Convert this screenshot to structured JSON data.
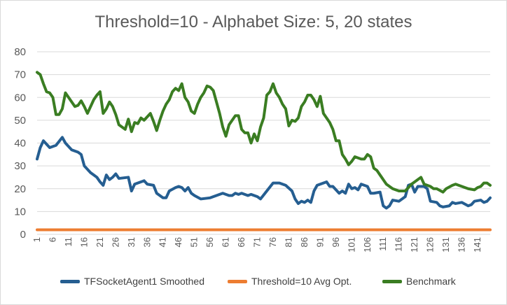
{
  "chart_data": {
    "type": "line",
    "title": "Threshold=10 - Alphabet Size: 5, 20 states",
    "xlabel": "",
    "ylabel": "",
    "ylim": [
      0,
      80
    ],
    "yticks": [
      0,
      10,
      20,
      30,
      40,
      50,
      60,
      70,
      80
    ],
    "xtick_labels": [
      "1",
      "6",
      "11",
      "16",
      "21",
      "26",
      "31",
      "36",
      "41",
      "46",
      "51",
      "56",
      "61",
      "66",
      "71",
      "76",
      "81",
      "86",
      "91",
      "96",
      "101",
      "106",
      "111",
      "116",
      "121",
      "126",
      "131",
      "136",
      "141"
    ],
    "x_count": 145,
    "grid": true,
    "legend_position": "bottom",
    "series": [
      {
        "name": "TFSocketAgent1 Smoothed",
        "color": "#255e91",
        "keypoints": [
          [
            1,
            33
          ],
          [
            2,
            38
          ],
          [
            3,
            41
          ],
          [
            5,
            38
          ],
          [
            7,
            39
          ],
          [
            9,
            42.5
          ],
          [
            10,
            40
          ],
          [
            12,
            37
          ],
          [
            14,
            36
          ],
          [
            15,
            35
          ],
          [
            16,
            30
          ],
          [
            18,
            27
          ],
          [
            19,
            26
          ],
          [
            20,
            25
          ],
          [
            21,
            23
          ],
          [
            22,
            21.5
          ],
          [
            23,
            26
          ],
          [
            24,
            24
          ],
          [
            25,
            25
          ],
          [
            26,
            26.5
          ],
          [
            27,
            24.5
          ],
          [
            30,
            25
          ],
          [
            31,
            19
          ],
          [
            32,
            22
          ],
          [
            35,
            23.5
          ],
          [
            36,
            22
          ],
          [
            38,
            21.5
          ],
          [
            39,
            18
          ],
          [
            41,
            16
          ],
          [
            42,
            16
          ],
          [
            43,
            19
          ],
          [
            45,
            20.5
          ],
          [
            46,
            21
          ],
          [
            47,
            20.5
          ],
          [
            48,
            19
          ],
          [
            49,
            20.5
          ],
          [
            50,
            18
          ],
          [
            51,
            17
          ],
          [
            53,
            15.5
          ],
          [
            56,
            16
          ],
          [
            58,
            17
          ],
          [
            60,
            18
          ],
          [
            62,
            17
          ],
          [
            63,
            17
          ],
          [
            64,
            18
          ],
          [
            65,
            17.5
          ],
          [
            66,
            18
          ],
          [
            68,
            17
          ],
          [
            69,
            17.5
          ],
          [
            71,
            16.5
          ],
          [
            72,
            15.5
          ],
          [
            74,
            19
          ],
          [
            76,
            22.5
          ],
          [
            78,
            22.5
          ],
          [
            80,
            21.5
          ],
          [
            82,
            19
          ],
          [
            83,
            15.5
          ],
          [
            84,
            13.5
          ],
          [
            85,
            14.5
          ],
          [
            86,
            14
          ],
          [
            87,
            15
          ],
          [
            88,
            14
          ],
          [
            89,
            19
          ],
          [
            90,
            21.5
          ],
          [
            92,
            22.5
          ],
          [
            93,
            23
          ],
          [
            94,
            21
          ],
          [
            95,
            21
          ],
          [
            96,
            19.5
          ],
          [
            97,
            18
          ],
          [
            98,
            19
          ],
          [
            99,
            18
          ],
          [
            100,
            22
          ],
          [
            101,
            20
          ],
          [
            102,
            20.5
          ],
          [
            103,
            19.5
          ],
          [
            104,
            22
          ],
          [
            105,
            21.5
          ],
          [
            106,
            21
          ],
          [
            107,
            18
          ],
          [
            108,
            18
          ],
          [
            110,
            18.5
          ],
          [
            111,
            12.5
          ],
          [
            112,
            11.5
          ],
          [
            113,
            12.5
          ],
          [
            114,
            15
          ],
          [
            116,
            14.5
          ],
          [
            118,
            16.5
          ],
          [
            119,
            21.5
          ],
          [
            120,
            22
          ],
          [
            121,
            18.5
          ],
          [
            122,
            21
          ],
          [
            124,
            21
          ],
          [
            125,
            20
          ],
          [
            126,
            14.5
          ],
          [
            128,
            14
          ],
          [
            129,
            12.5
          ],
          [
            130,
            12
          ],
          [
            132,
            12.5
          ],
          [
            133,
            14
          ],
          [
            134,
            13.5
          ],
          [
            136,
            14
          ],
          [
            138,
            12.5
          ],
          [
            139,
            13
          ],
          [
            140,
            14.5
          ],
          [
            142,
            15
          ],
          [
            143,
            14
          ],
          [
            144,
            14.5
          ],
          [
            145,
            16
          ]
        ]
      },
      {
        "name": "Threshold=10 Avg Opt.",
        "color": "#ed7d31",
        "keypoints": [
          [
            1,
            2
          ],
          [
            145,
            2
          ]
        ]
      },
      {
        "name": "Benchmark",
        "color": "#3a7d22",
        "keypoints": [
          [
            1,
            71
          ],
          [
            2,
            70
          ],
          [
            3,
            66
          ],
          [
            4,
            62.5
          ],
          [
            5,
            62
          ],
          [
            6,
            60
          ],
          [
            7,
            52.5
          ],
          [
            8,
            52.5
          ],
          [
            9,
            55
          ],
          [
            10,
            62
          ],
          [
            11,
            60
          ],
          [
            12,
            58
          ],
          [
            13,
            56
          ],
          [
            14,
            56.5
          ],
          [
            15,
            58.5
          ],
          [
            16,
            56
          ],
          [
            17,
            53
          ],
          [
            18,
            56
          ],
          [
            19,
            59
          ],
          [
            20,
            61
          ],
          [
            21,
            62.5
          ],
          [
            22,
            53
          ],
          [
            23,
            55
          ],
          [
            24,
            58
          ],
          [
            25,
            56
          ],
          [
            26,
            52.5
          ],
          [
            27,
            48
          ],
          [
            28,
            47
          ],
          [
            29,
            46
          ],
          [
            30,
            50.5
          ],
          [
            31,
            45
          ],
          [
            32,
            49
          ],
          [
            33,
            48.5
          ],
          [
            34,
            51
          ],
          [
            35,
            50
          ],
          [
            36,
            51.5
          ],
          [
            37,
            53
          ],
          [
            38,
            49.5
          ],
          [
            39,
            45.5
          ],
          [
            40,
            50
          ],
          [
            41,
            54
          ],
          [
            42,
            57
          ],
          [
            43,
            59
          ],
          [
            44,
            62.5
          ],
          [
            45,
            64
          ],
          [
            46,
            63
          ],
          [
            47,
            66
          ],
          [
            48,
            60
          ],
          [
            49,
            58
          ],
          [
            50,
            54
          ],
          [
            51,
            53
          ],
          [
            52,
            57
          ],
          [
            53,
            60
          ],
          [
            54,
            62
          ],
          [
            55,
            65
          ],
          [
            56,
            64.5
          ],
          [
            57,
            63
          ],
          [
            58,
            58
          ],
          [
            59,
            53
          ],
          [
            60,
            47
          ],
          [
            61,
            43
          ],
          [
            62,
            48
          ],
          [
            63,
            50
          ],
          [
            64,
            52
          ],
          [
            65,
            52
          ],
          [
            66,
            46
          ],
          [
            67,
            44.5
          ],
          [
            68,
            44.5
          ],
          [
            69,
            40
          ],
          [
            70,
            44
          ],
          [
            71,
            41
          ],
          [
            72,
            47
          ],
          [
            73,
            51
          ],
          [
            74,
            61
          ],
          [
            75,
            62.5
          ],
          [
            76,
            66
          ],
          [
            77,
            62
          ],
          [
            78,
            60
          ],
          [
            79,
            57
          ],
          [
            80,
            55
          ],
          [
            81,
            47.5
          ],
          [
            82,
            50
          ],
          [
            83,
            49.5
          ],
          [
            84,
            51
          ],
          [
            85,
            56
          ],
          [
            86,
            58
          ],
          [
            87,
            61
          ],
          [
            88,
            61
          ],
          [
            89,
            59
          ],
          [
            90,
            56
          ],
          [
            91,
            60.5
          ],
          [
            92,
            53
          ],
          [
            93,
            51
          ],
          [
            94,
            49
          ],
          [
            95,
            46
          ],
          [
            96,
            41
          ],
          [
            97,
            41
          ],
          [
            98,
            35
          ],
          [
            99,
            33
          ],
          [
            100,
            30.5
          ],
          [
            101,
            32
          ],
          [
            102,
            34
          ],
          [
            103,
            33.5
          ],
          [
            104,
            33
          ],
          [
            105,
            33
          ],
          [
            106,
            35
          ],
          [
            107,
            34
          ],
          [
            108,
            29
          ],
          [
            109,
            28
          ],
          [
            110,
            26
          ],
          [
            111,
            24
          ],
          [
            112,
            22
          ],
          [
            113,
            21
          ],
          [
            114,
            20
          ],
          [
            116,
            19
          ],
          [
            118,
            19
          ],
          [
            120,
            22
          ],
          [
            121,
            23
          ],
          [
            123,
            25
          ],
          [
            124,
            22
          ],
          [
            126,
            21
          ],
          [
            127,
            20
          ],
          [
            128,
            20
          ],
          [
            130,
            18.5
          ],
          [
            131,
            20
          ],
          [
            133,
            21.5
          ],
          [
            134,
            22
          ],
          [
            136,
            21
          ],
          [
            137,
            20.5
          ],
          [
            138,
            20
          ],
          [
            140,
            19.5
          ],
          [
            141,
            20.5
          ],
          [
            142,
            21
          ],
          [
            143,
            22.5
          ],
          [
            144,
            22.5
          ],
          [
            145,
            21.5
          ]
        ]
      }
    ]
  }
}
